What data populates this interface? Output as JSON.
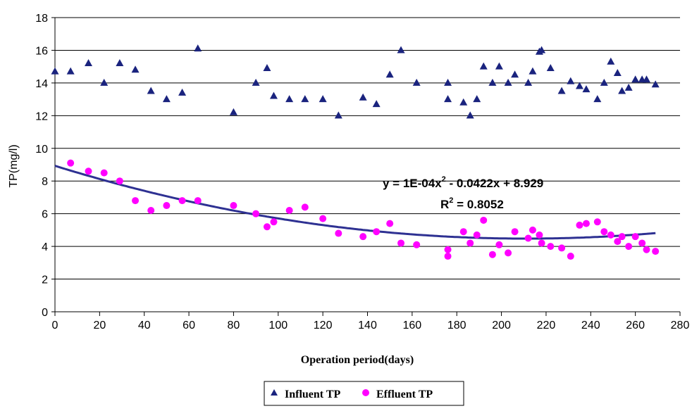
{
  "chart_data": {
    "type": "scatter",
    "xlabel": "Operation period(days)",
    "ylabel": "TP(mg/l)",
    "xlim": [
      0,
      280
    ],
    "ylim": [
      0,
      18
    ],
    "x_ticks": [
      0,
      20,
      40,
      60,
      80,
      100,
      120,
      140,
      160,
      180,
      200,
      220,
      240,
      260,
      280
    ],
    "y_ticks": [
      0,
      2,
      4,
      6,
      8,
      10,
      12,
      14,
      16,
      18
    ],
    "grid": "horizontal",
    "legend_position": "bottom",
    "series": [
      {
        "name": "Influent TP",
        "marker": "triangle",
        "color": "#1a237e",
        "points": [
          [
            0,
            14.7
          ],
          [
            7,
            14.7
          ],
          [
            15,
            15.2
          ],
          [
            22,
            14.0
          ],
          [
            29,
            15.2
          ],
          [
            36,
            14.8
          ],
          [
            43,
            13.5
          ],
          [
            50,
            13.0
          ],
          [
            57,
            13.4
          ],
          [
            64,
            16.1
          ],
          [
            80,
            12.2
          ],
          [
            90,
            14.0
          ],
          [
            95,
            14.9
          ],
          [
            98,
            13.2
          ],
          [
            105,
            13.0
          ],
          [
            112,
            13.0
          ],
          [
            120,
            13.0
          ],
          [
            127,
            12.0
          ],
          [
            138,
            13.1
          ],
          [
            144,
            12.7
          ],
          [
            150,
            14.5
          ],
          [
            155,
            16.0
          ],
          [
            162,
            14.0
          ],
          [
            176,
            14.0
          ],
          [
            176,
            13.0
          ],
          [
            183,
            12.8
          ],
          [
            186,
            12.0
          ],
          [
            189,
            13.0
          ],
          [
            192,
            15.0
          ],
          [
            196,
            14.0
          ],
          [
            199,
            15.0
          ],
          [
            203,
            14.0
          ],
          [
            206,
            14.5
          ],
          [
            212,
            14.0
          ],
          [
            214,
            14.7
          ],
          [
            217,
            15.9
          ],
          [
            218,
            16.0
          ],
          [
            222,
            14.9
          ],
          [
            227,
            13.5
          ],
          [
            231,
            14.1
          ],
          [
            235,
            13.8
          ],
          [
            238,
            13.6
          ],
          [
            243,
            13.0
          ],
          [
            246,
            14.0
          ],
          [
            249,
            15.3
          ],
          [
            252,
            14.6
          ],
          [
            254,
            13.5
          ],
          [
            257,
            13.7
          ],
          [
            260,
            14.2
          ],
          [
            263,
            14.2
          ],
          [
            265,
            14.2
          ],
          [
            269,
            13.9
          ]
        ]
      },
      {
        "name": "Effluent TP",
        "marker": "circle",
        "color": "#ff00ff",
        "points": [
          [
            7,
            9.1
          ],
          [
            15,
            8.6
          ],
          [
            22,
            8.5
          ],
          [
            29,
            8.0
          ],
          [
            36,
            6.8
          ],
          [
            43,
            6.2
          ],
          [
            50,
            6.5
          ],
          [
            57,
            6.8
          ],
          [
            64,
            6.8
          ],
          [
            80,
            6.5
          ],
          [
            90,
            6.0
          ],
          [
            95,
            5.2
          ],
          [
            98,
            5.5
          ],
          [
            105,
            6.2
          ],
          [
            112,
            6.4
          ],
          [
            120,
            5.7
          ],
          [
            127,
            4.8
          ],
          [
            138,
            4.6
          ],
          [
            144,
            4.9
          ],
          [
            150,
            5.4
          ],
          [
            155,
            4.2
          ],
          [
            162,
            4.1
          ],
          [
            176,
            3.8
          ],
          [
            176,
            3.4
          ],
          [
            183,
            4.9
          ],
          [
            186,
            4.2
          ],
          [
            189,
            4.7
          ],
          [
            192,
            5.6
          ],
          [
            196,
            3.5
          ],
          [
            199,
            4.1
          ],
          [
            203,
            3.6
          ],
          [
            206,
            4.9
          ],
          [
            212,
            4.5
          ],
          [
            214,
            5.0
          ],
          [
            217,
            4.7
          ],
          [
            218,
            4.2
          ],
          [
            222,
            4.0
          ],
          [
            227,
            3.9
          ],
          [
            231,
            3.4
          ],
          [
            235,
            5.3
          ],
          [
            238,
            5.4
          ],
          [
            243,
            5.5
          ],
          [
            246,
            4.9
          ],
          [
            249,
            4.7
          ],
          [
            252,
            4.3
          ],
          [
            254,
            4.6
          ],
          [
            257,
            4.0
          ],
          [
            260,
            4.6
          ],
          [
            263,
            4.2
          ],
          [
            265,
            3.8
          ],
          [
            269,
            3.7
          ]
        ]
      }
    ],
    "trendline": {
      "type": "polynomial",
      "coefficients": [
        0.0001,
        -0.0422,
        8.929
      ],
      "x_range": [
        0,
        269
      ],
      "color": "#2e3192"
    },
    "annotations": {
      "equation_prefix": "y = 1E-04x",
      "equation_exp": "2",
      "equation_suffix": " - 0.0422x + 8.929",
      "r2_prefix": "R",
      "r2_exp": "2",
      "r2_suffix": " = 0.8052"
    }
  }
}
